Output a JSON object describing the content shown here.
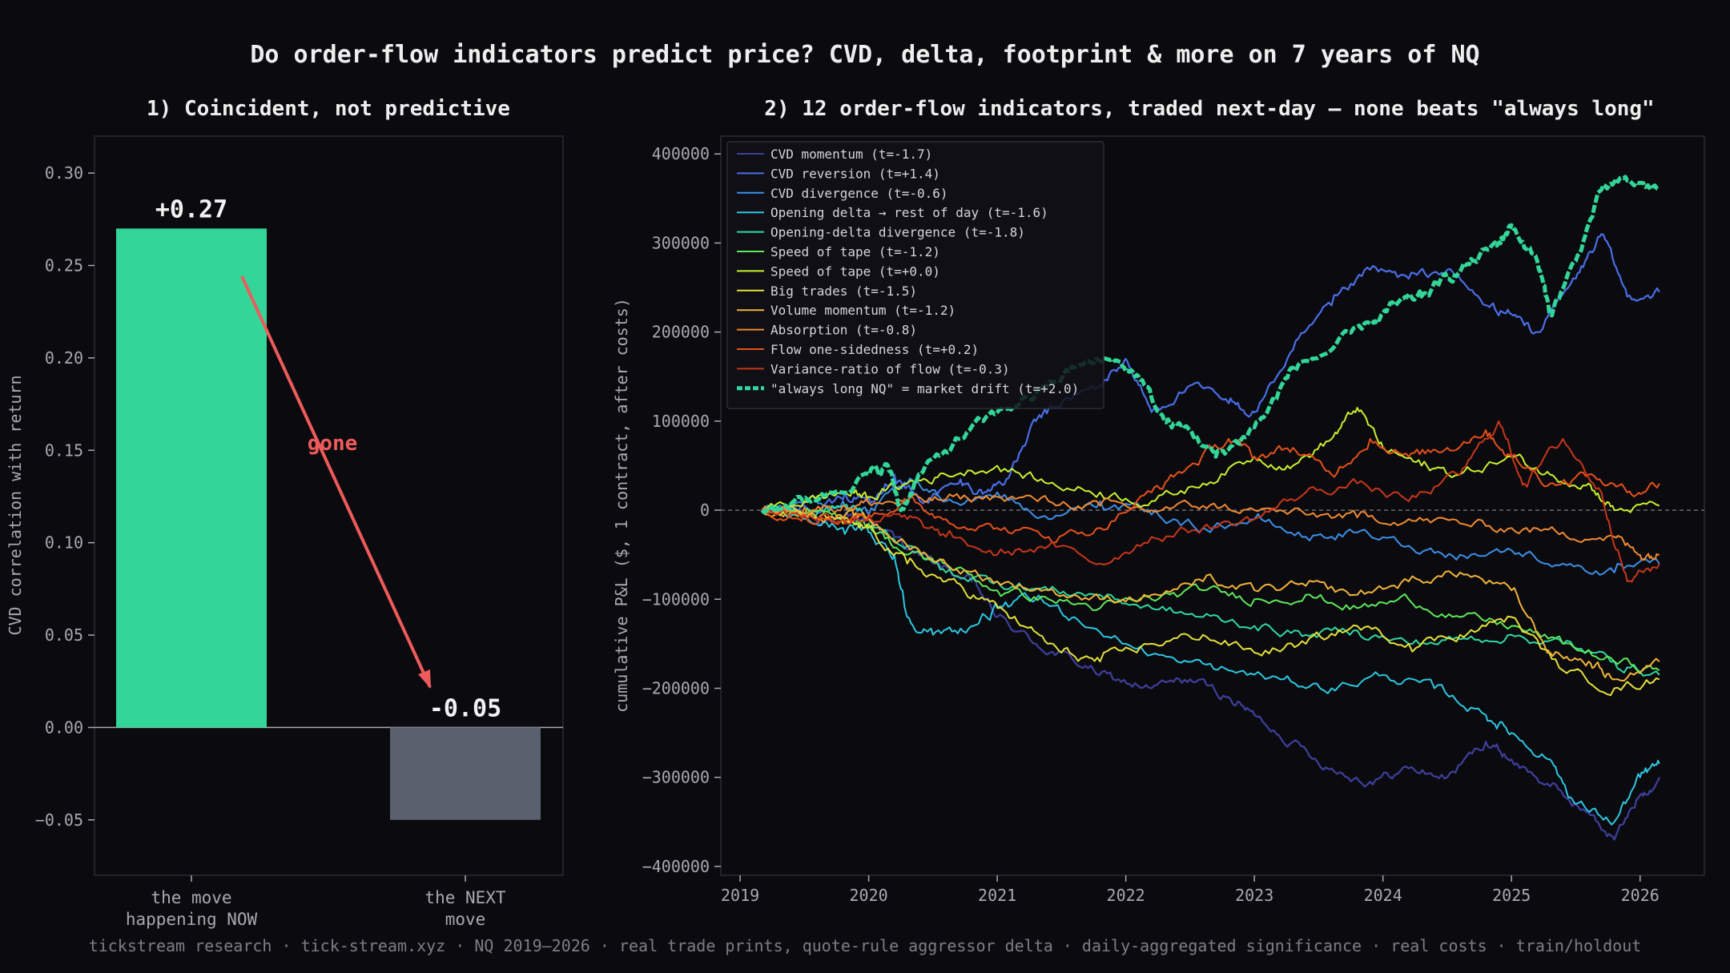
{
  "title": "Do order-flow indicators predict price? CVD, delta, footprint & more on 7 years of NQ",
  "footer": "tickstream research · tick-stream.xyz · NQ 2019–2026 · real trade prints, quote-rule aggressor delta · daily-aggregated significance · real costs · train/holdout",
  "colors": {
    "background": "#0b0b0f",
    "bar_now": "#33d699",
    "bar_next": "#5a606e",
    "arrow": "#ef5b5b"
  },
  "chart_data": [
    {
      "type": "bar",
      "title": "1) Coincident, not predictive",
      "categories": [
        "the move\nhappening NOW",
        "the NEXT\nmove"
      ],
      "values": [
        0.27,
        -0.05
      ],
      "value_labels": [
        "+0.27",
        "-0.05"
      ],
      "ylabel": "CVD correlation with return",
      "ylim": [
        -0.08,
        0.32
      ],
      "yticks": [
        -0.05,
        0.0,
        0.05,
        0.1,
        0.15,
        0.2,
        0.25,
        0.3
      ],
      "ytick_labels": [
        "−0.05",
        "0.00",
        "0.05",
        "0.10",
        "0.15",
        "0.20",
        "0.25",
        "0.30"
      ],
      "annotation": "gone",
      "grid": false
    },
    {
      "type": "line",
      "title": "2) 12 order-flow indicators, traded next-day — none beats \"always long\"",
      "ylabel": "cumulative P&L ($, 1 contract, after costs)",
      "xlim": [
        2018.85,
        2026.5
      ],
      "ylim": [
        -410000,
        420000
      ],
      "xticks": [
        2019,
        2020,
        2021,
        2022,
        2023,
        2024,
        2025,
        2026
      ],
      "yticks": [
        -400000,
        -300000,
        -200000,
        -100000,
        0,
        100000,
        200000,
        300000,
        400000
      ],
      "ytick_labels": [
        "−400000",
        "−300000",
        "−200000",
        "−100000",
        "0",
        "100000",
        "200000",
        "300000",
        "400000"
      ],
      "legend_position": "top-left",
      "zero_line": true,
      "series": [
        {
          "name": "CVD momentum  (t=-1.7)",
          "color": "#3f3f9e",
          "width": 2.2,
          "x": [
            2019.17,
            2019.5,
            2019.8,
            2020.0,
            2020.2,
            2020.5,
            2020.8,
            2021.0,
            2021.3,
            2021.6,
            2021.9,
            2022.2,
            2022.5,
            2022.8,
            2023.0,
            2023.3,
            2023.6,
            2023.9,
            2024.2,
            2024.5,
            2024.8,
            2025.0,
            2025.3,
            2025.6,
            2025.8,
            2026.0,
            2026.15
          ],
          "y": [
            0,
            -5000,
            -12000,
            -10000,
            -30000,
            -60000,
            -80000,
            -120000,
            -150000,
            -170000,
            -190000,
            -200000,
            -190000,
            -210000,
            -230000,
            -260000,
            -290000,
            -305000,
            -290000,
            -300000,
            -260000,
            -280000,
            -310000,
            -340000,
            -370000,
            -320000,
            -300000
          ]
        },
        {
          "name": "CVD reversion  (t=+1.4)",
          "color": "#4a6ee8",
          "width": 2.2,
          "x": [
            2019.17,
            2019.5,
            2019.8,
            2020.0,
            2020.2,
            2020.4,
            2020.7,
            2020.9,
            2021.1,
            2021.3,
            2021.5,
            2021.8,
            2022.0,
            2022.2,
            2022.5,
            2022.8,
            2023.0,
            2023.3,
            2023.6,
            2023.9,
            2024.2,
            2024.5,
            2024.8,
            2025.0,
            2025.2,
            2025.5,
            2025.7,
            2025.9,
            2026.15
          ],
          "y": [
            0,
            5000,
            12000,
            15000,
            40000,
            10000,
            30000,
            20000,
            40000,
            100000,
            120000,
            140000,
            170000,
            110000,
            140000,
            120000,
            110000,
            180000,
            230000,
            270000,
            260000,
            270000,
            230000,
            220000,
            200000,
            260000,
            310000,
            240000,
            245000
          ]
        },
        {
          "name": "CVD divergence  (t=-0.6)",
          "color": "#3d8fe8",
          "width": 2.0,
          "x": [
            2019.17,
            2019.5,
            2019.8,
            2020.0,
            2020.3,
            2020.6,
            2021.0,
            2021.4,
            2021.8,
            2022.2,
            2022.6,
            2023.0,
            2023.4,
            2023.8,
            2024.2,
            2024.6,
            2025.0,
            2025.4,
            2025.8,
            2026.15
          ],
          "y": [
            0,
            8000,
            10000,
            -5000,
            30000,
            10000,
            20000,
            -10000,
            10000,
            -5000,
            -20000,
            -10000,
            -30000,
            -25000,
            -40000,
            -50000,
            -45000,
            -60000,
            -70000,
            -60000
          ]
        },
        {
          "name": "Opening delta → rest of day  (t=-1.6)",
          "color": "#2dc7e0",
          "width": 2.0,
          "x": [
            2019.17,
            2019.5,
            2019.8,
            2020.0,
            2020.2,
            2020.3,
            2020.5,
            2020.8,
            2021.0,
            2021.3,
            2021.6,
            2022.0,
            2022.4,
            2022.8,
            2023.2,
            2023.6,
            2024.0,
            2024.4,
            2024.8,
            2025.0,
            2025.3,
            2025.5,
            2025.8,
            2026.0,
            2026.15
          ],
          "y": [
            0,
            -10000,
            -20000,
            -25000,
            -50000,
            -120000,
            -140000,
            -130000,
            -110000,
            -100000,
            -120000,
            -150000,
            -170000,
            -180000,
            -190000,
            -200000,
            -185000,
            -200000,
            -230000,
            -250000,
            -280000,
            -330000,
            -350000,
            -300000,
            -285000
          ]
        },
        {
          "name": "Opening-delta divergence  (t=-1.8)",
          "color": "#2fd9a0",
          "width": 2.0,
          "x": [
            2019.17,
            2019.5,
            2019.8,
            2020.0,
            2020.3,
            2020.6,
            2021.0,
            2021.4,
            2021.8,
            2022.2,
            2022.6,
            2023.0,
            2023.4,
            2023.8,
            2024.2,
            2024.6,
            2025.0,
            2025.4,
            2025.8,
            2026.15
          ],
          "y": [
            0,
            -5000,
            5000,
            -10000,
            -40000,
            -70000,
            -80000,
            -90000,
            -95000,
            -110000,
            -120000,
            -130000,
            -140000,
            -135000,
            -150000,
            -145000,
            -140000,
            -150000,
            -170000,
            -185000
          ]
        },
        {
          "name": "Speed of tape  (t=-1.2)",
          "color": "#5ee85a",
          "width": 2.0,
          "x": [
            2019.17,
            2019.5,
            2019.8,
            2020.0,
            2020.3,
            2020.6,
            2021.0,
            2021.4,
            2021.8,
            2022.2,
            2022.6,
            2023.0,
            2023.4,
            2023.8,
            2024.2,
            2024.6,
            2025.0,
            2025.4,
            2025.8,
            2026.15
          ],
          "y": [
            0,
            -5000,
            -8000,
            -15000,
            -50000,
            -60000,
            -90000,
            -100000,
            -110000,
            -100000,
            -90000,
            -100000,
            -95000,
            -110000,
            -100000,
            -120000,
            -130000,
            -150000,
            -170000,
            -180000
          ]
        },
        {
          "name": "Speed of tape  (t=+0.0)",
          "color": "#c8f02e",
          "width": 2.0,
          "x": [
            2019.17,
            2019.5,
            2019.8,
            2020.0,
            2020.3,
            2020.6,
            2021.0,
            2021.4,
            2021.8,
            2022.2,
            2022.6,
            2023.0,
            2023.3,
            2023.6,
            2023.8,
            2024.0,
            2024.3,
            2024.6,
            2025.0,
            2025.3,
            2025.6,
            2025.8,
            2026.15
          ],
          "y": [
            0,
            10000,
            20000,
            15000,
            30000,
            40000,
            50000,
            30000,
            20000,
            10000,
            30000,
            60000,
            50000,
            80000,
            115000,
            70000,
            50000,
            40000,
            60000,
            40000,
            30000,
            0,
            5000
          ]
        },
        {
          "name": "Big trades  (t=-1.5)",
          "color": "#e5e03a",
          "width": 2.0,
          "x": [
            2019.17,
            2019.5,
            2019.8,
            2020.0,
            2020.3,
            2020.6,
            2020.9,
            2021.2,
            2021.5,
            2021.8,
            2022.2,
            2022.6,
            2023.0,
            2023.4,
            2023.8,
            2024.2,
            2024.6,
            2025.0,
            2025.4,
            2025.8,
            2026.15
          ],
          "y": [
            0,
            -5000,
            -15000,
            -20000,
            -60000,
            -80000,
            -100000,
            -130000,
            -160000,
            -170000,
            -150000,
            -140000,
            -160000,
            -150000,
            -130000,
            -150000,
            -140000,
            -120000,
            -180000,
            -200000,
            -190000
          ]
        },
        {
          "name": "Volume momentum  (t=-1.2)",
          "color": "#f2b33a",
          "width": 2.0,
          "x": [
            2019.17,
            2019.5,
            2019.8,
            2020.0,
            2020.3,
            2020.6,
            2021.0,
            2021.4,
            2021.8,
            2022.2,
            2022.6,
            2023.0,
            2023.4,
            2023.8,
            2024.2,
            2024.6,
            2025.0,
            2025.3,
            2025.6,
            2025.8,
            2026.15
          ],
          "y": [
            0,
            -3000,
            -8000,
            -10000,
            -40000,
            -60000,
            -80000,
            -90000,
            -100000,
            -95000,
            -80000,
            -90000,
            -85000,
            -95000,
            -80000,
            -70000,
            -90000,
            -160000,
            -170000,
            -190000,
            -170000
          ]
        },
        {
          "name": "Absorption  (t=-0.8)",
          "color": "#f08a30",
          "width": 2.0,
          "x": [
            2019.17,
            2019.5,
            2019.8,
            2020.0,
            2020.3,
            2020.6,
            2021.0,
            2021.4,
            2021.8,
            2022.2,
            2022.6,
            2023.0,
            2023.4,
            2023.8,
            2024.2,
            2024.6,
            2025.0,
            2025.4,
            2025.8,
            2026.0,
            2026.15
          ],
          "y": [
            0,
            3000,
            5000,
            8000,
            10000,
            12000,
            15000,
            10000,
            5000,
            0,
            5000,
            0,
            -5000,
            -8000,
            -10000,
            -15000,
            -20000,
            -25000,
            -30000,
            -50000,
            -50000
          ]
        },
        {
          "name": "Flow one-sidedness  (t=+0.2)",
          "color": "#e8501a",
          "width": 2.0,
          "x": [
            2019.17,
            2019.5,
            2019.8,
            2020.0,
            2020.3,
            2020.6,
            2021.0,
            2021.4,
            2021.8,
            2022.2,
            2022.5,
            2022.8,
            2023.0,
            2023.3,
            2023.6,
            2023.9,
            2024.2,
            2024.5,
            2024.8,
            2025.0,
            2025.3,
            2025.6,
            2025.9,
            2026.15
          ],
          "y": [
            0,
            -5000,
            -10000,
            -5000,
            10000,
            -10000,
            -20000,
            -30000,
            -20000,
            20000,
            50000,
            80000,
            60000,
            70000,
            40000,
            80000,
            60000,
            70000,
            90000,
            60000,
            30000,
            40000,
            20000,
            30000
          ]
        },
        {
          "name": "Variance-ratio of flow  (t=-0.3)",
          "color": "#c8361a",
          "width": 2.0,
          "x": [
            2019.17,
            2019.5,
            2019.8,
            2020.0,
            2020.3,
            2020.6,
            2021.0,
            2021.4,
            2021.8,
            2022.2,
            2022.6,
            2023.0,
            2023.4,
            2023.8,
            2024.2,
            2024.6,
            2024.9,
            2025.1,
            2025.4,
            2025.7,
            2025.9,
            2026.15
          ],
          "y": [
            0,
            -5000,
            -10000,
            -8000,
            -10000,
            -30000,
            -50000,
            -40000,
            -60000,
            -30000,
            -20000,
            -10000,
            20000,
            30000,
            10000,
            40000,
            100000,
            30000,
            80000,
            20000,
            -80000,
            -60000
          ]
        },
        {
          "name": "\"always long NQ\" = market drift  (t=+2.0)",
          "color": "#33d699",
          "width": 5,
          "dashed": true,
          "x": [
            2019.17,
            2019.4,
            2019.7,
            2020.0,
            2020.15,
            2020.25,
            2020.4,
            2020.7,
            2021.0,
            2021.3,
            2021.6,
            2021.9,
            2022.1,
            2022.3,
            2022.5,
            2022.7,
            2022.9,
            2023.1,
            2023.3,
            2023.6,
            2023.9,
            2024.1,
            2024.3,
            2024.5,
            2024.7,
            2024.9,
            2025.0,
            2025.2,
            2025.3,
            2025.5,
            2025.7,
            2025.9,
            2026.15
          ],
          "y": [
            0,
            8000,
            20000,
            40000,
            50000,
            0,
            40000,
            80000,
            110000,
            130000,
            160000,
            170000,
            150000,
            100000,
            90000,
            60000,
            80000,
            110000,
            160000,
            180000,
            210000,
            230000,
            240000,
            260000,
            280000,
            300000,
            320000,
            280000,
            220000,
            280000,
            360000,
            370000,
            360000
          ]
        }
      ]
    }
  ]
}
